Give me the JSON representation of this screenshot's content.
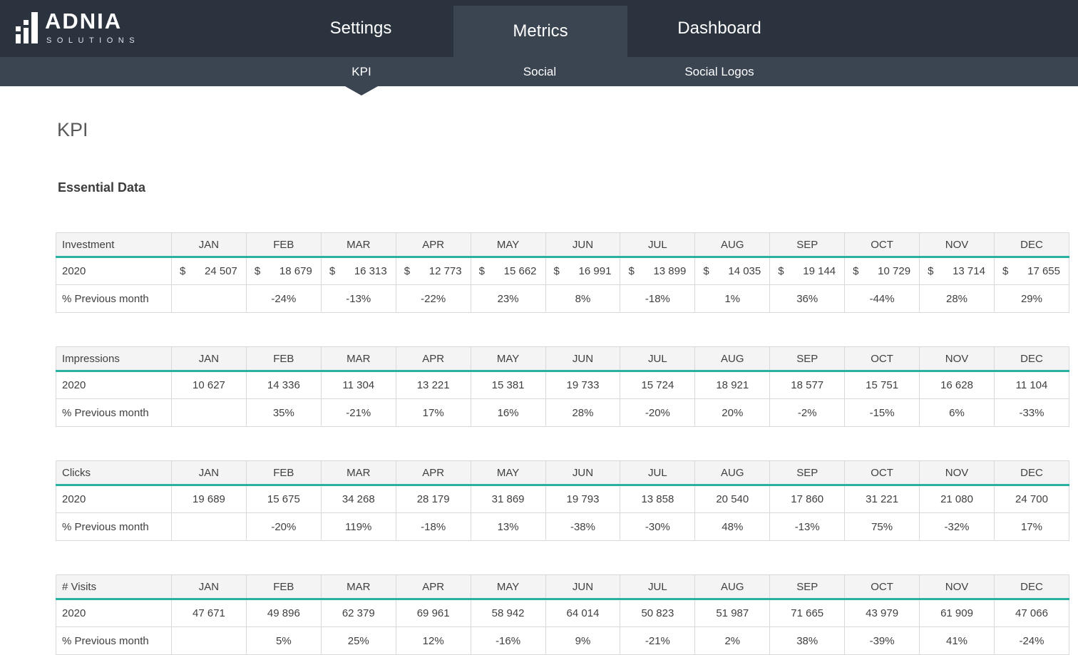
{
  "brand": {
    "name": "ADNIA",
    "sub": "SOLUTIONS"
  },
  "nav": {
    "tabs": [
      {
        "label": "Settings",
        "active": false
      },
      {
        "label": "Metrics",
        "active": true
      },
      {
        "label": "Dashboard",
        "active": false
      }
    ]
  },
  "subnav": {
    "items": [
      {
        "label": "KPI",
        "active": true
      },
      {
        "label": "Social",
        "active": false
      },
      {
        "label": "Social Logos",
        "active": false
      }
    ]
  },
  "page": {
    "title": "KPI",
    "section_title": "Essential Data"
  },
  "months": [
    "JAN",
    "FEB",
    "MAR",
    "APR",
    "MAY",
    "JUN",
    "JUL",
    "AUG",
    "SEP",
    "OCT",
    "NOV",
    "DEC"
  ],
  "tables": [
    {
      "name": "Investment",
      "year": "2020",
      "pct_label": "% Previous month",
      "currency": "$",
      "values": [
        "24 507",
        "18 679",
        "16 313",
        "12 773",
        "15 662",
        "16 991",
        "13 899",
        "14 035",
        "19 144",
        "10 729",
        "13 714",
        "17 655"
      ],
      "pct": [
        "",
        "-24%",
        "-13%",
        "-22%",
        "23%",
        "8%",
        "-18%",
        "1%",
        "36%",
        "-44%",
        "28%",
        "29%"
      ]
    },
    {
      "name": "Impressions",
      "year": "2020",
      "pct_label": "% Previous month",
      "currency": "",
      "values": [
        "10 627",
        "14 336",
        "11 304",
        "13 221",
        "15 381",
        "19 733",
        "15 724",
        "18 921",
        "18 577",
        "15 751",
        "16 628",
        "11 104"
      ],
      "pct": [
        "",
        "35%",
        "-21%",
        "17%",
        "16%",
        "28%",
        "-20%",
        "20%",
        "-2%",
        "-15%",
        "6%",
        "-33%"
      ]
    },
    {
      "name": "Clicks",
      "year": "2020",
      "pct_label": "% Previous month",
      "currency": "",
      "values": [
        "19 689",
        "15 675",
        "34 268",
        "28 179",
        "31 869",
        "19 793",
        "13 858",
        "20 540",
        "17 860",
        "31 221",
        "21 080",
        "24 700"
      ],
      "pct": [
        "",
        "-20%",
        "119%",
        "-18%",
        "13%",
        "-38%",
        "-30%",
        "48%",
        "-13%",
        "75%",
        "-32%",
        "17%"
      ]
    },
    {
      "name": "# Visits",
      "year": "2020",
      "pct_label": "% Previous month",
      "currency": "",
      "values": [
        "47 671",
        "49 896",
        "62 379",
        "69 961",
        "58 942",
        "64 014",
        "50 823",
        "51 987",
        "71 665",
        "43 979",
        "61 909",
        "47 066"
      ],
      "pct": [
        "",
        "5%",
        "25%",
        "12%",
        "-16%",
        "9%",
        "-21%",
        "2%",
        "38%",
        "-39%",
        "41%",
        "-24%"
      ]
    }
  ],
  "colors": {
    "header_dark": "#2a333e",
    "header_light": "#3b4552",
    "accent_teal": "#29b2a1",
    "table_border": "#d9d9d9",
    "header_row_bg": "#f4f4f4",
    "text": "#404040"
  }
}
